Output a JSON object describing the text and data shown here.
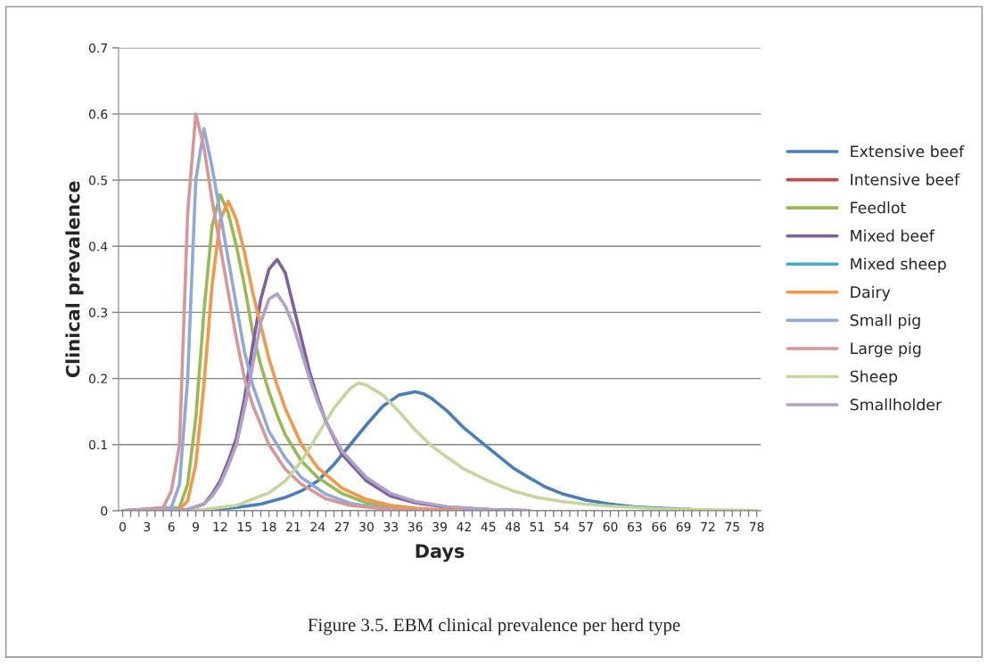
{
  "chart_data": {
    "type": "line",
    "title": "Figure 3.5. EBM clinical prevalence per herd type",
    "xlabel": "Days",
    "ylabel": "Clinical prevalence",
    "xlim": [
      -0.5,
      78.5
    ],
    "ylim": [
      0,
      0.7
    ],
    "yticks": [
      0,
      0.1,
      0.2,
      0.3,
      0.4,
      0.5,
      0.6,
      0.7
    ],
    "xticks": [
      0,
      {
        "value": 1,
        "label": null
      },
      {
        "value": 2,
        "label": null
      },
      3,
      {
        "value": 4,
        "label": null
      },
      {
        "value": 5,
        "label": null
      },
      6,
      {
        "value": 7,
        "label": null
      },
      {
        "value": 8,
        "label": null
      },
      9,
      {
        "value": 10,
        "label": null
      },
      {
        "value": 11,
        "label": null
      },
      12,
      {
        "value": 13,
        "label": null
      },
      {
        "value": 14,
        "label": null
      },
      15,
      {
        "value": 16,
        "label": null
      },
      {
        "value": 17,
        "label": null
      },
      18,
      {
        "value": 19,
        "label": null
      },
      {
        "value": 20,
        "label": null
      },
      21,
      {
        "value": 22,
        "label": null
      },
      {
        "value": 23,
        "label": null
      },
      24,
      {
        "value": 25,
        "label": null
      },
      {
        "value": 26,
        "label": null
      },
      27,
      {
        "value": 28,
        "label": null
      },
      {
        "value": 29,
        "label": null
      },
      30,
      {
        "value": 31,
        "label": null
      },
      {
        "value": 32,
        "label": null
      },
      33,
      {
        "value": 34,
        "label": null
      },
      {
        "value": 35,
        "label": null
      },
      36,
      {
        "value": 37,
        "label": null
      },
      {
        "value": 38,
        "label": null
      },
      39,
      {
        "value": 40,
        "label": null
      },
      {
        "value": 41,
        "label": null
      },
      42,
      {
        "value": 43,
        "label": null
      },
      {
        "value": 44,
        "label": null
      },
      45,
      {
        "value": 46,
        "label": null
      },
      {
        "value": 47,
        "label": null
      },
      48,
      {
        "value": 49,
        "label": null
      },
      {
        "value": 50,
        "label": null
      },
      51,
      {
        "value": 52,
        "label": null
      },
      {
        "value": 53,
        "label": null
      },
      54,
      {
        "value": 55,
        "label": null
      },
      {
        "value": 56,
        "label": null
      },
      57,
      {
        "value": 58,
        "label": null
      },
      {
        "value": 59,
        "label": null
      },
      60,
      {
        "value": 61,
        "label": null
      },
      {
        "value": 62,
        "label": null
      },
      63,
      {
        "value": 64,
        "label": null
      },
      {
        "value": 65,
        "label": null
      },
      66,
      {
        "value": 67,
        "label": null
      },
      {
        "value": 68,
        "label": null
      },
      69,
      {
        "value": 70,
        "label": null
      },
      {
        "value": 71,
        "label": null
      },
      72,
      {
        "value": 73,
        "label": null
      },
      {
        "value": 74,
        "label": null
      },
      75,
      {
        "value": 76,
        "label": null
      },
      {
        "value": 77,
        "label": null
      },
      78
    ],
    "grid": "y",
    "legend": "right",
    "marker": "none",
    "line_style": "solid",
    "series": [
      {
        "name": "Extensive beef",
        "color": "#4a7ebb",
        "x": [
          0,
          10,
          14,
          17,
          20,
          22,
          24,
          26,
          28,
          30,
          32,
          34,
          36,
          37,
          38,
          40,
          42,
          44,
          46,
          48,
          50,
          52,
          54,
          57,
          60,
          63,
          66,
          70
        ],
        "values": [
          0,
          0.001,
          0.005,
          0.01,
          0.02,
          0.03,
          0.045,
          0.07,
          0.1,
          0.13,
          0.158,
          0.175,
          0.18,
          0.177,
          0.17,
          0.15,
          0.125,
          0.105,
          0.085,
          0.065,
          0.05,
          0.036,
          0.026,
          0.016,
          0.01,
          0.006,
          0.004,
          0.002
        ]
      },
      {
        "name": "Intensive beef",
        "color": "#be4b48"
      },
      {
        "name": "Feedlot",
        "color": "#98b954",
        "x": [
          0,
          7,
          8,
          9,
          10,
          11,
          12,
          13,
          14,
          15,
          16,
          17,
          18,
          19,
          20,
          22,
          24,
          27,
          30,
          33,
          36,
          40
        ],
        "values": [
          0,
          0.005,
          0.04,
          0.14,
          0.3,
          0.43,
          0.478,
          0.45,
          0.4,
          0.34,
          0.27,
          0.22,
          0.18,
          0.145,
          0.115,
          0.075,
          0.05,
          0.026,
          0.012,
          0.005,
          0.002,
          0
        ]
      },
      {
        "name": "Mixed beef",
        "color": "#7d60a0",
        "x": [
          0,
          8,
          10,
          11,
          12,
          13,
          14,
          15,
          16,
          17,
          18,
          19,
          20,
          21,
          22,
          23,
          24,
          25,
          27,
          30,
          33,
          36,
          40,
          45,
          50
        ],
        "values": [
          0,
          0.002,
          0.01,
          0.025,
          0.045,
          0.075,
          0.11,
          0.17,
          0.25,
          0.32,
          0.365,
          0.38,
          0.36,
          0.31,
          0.26,
          0.21,
          0.17,
          0.135,
          0.085,
          0.045,
          0.022,
          0.012,
          0.005,
          0.002,
          0
        ]
      },
      {
        "name": "Mixed sheep",
        "color": "#46aac5"
      },
      {
        "name": "Dairy",
        "color": "#f79646",
        "x": [
          0,
          7,
          8,
          9,
          10,
          11,
          12,
          13,
          14,
          15,
          16,
          17,
          18,
          19,
          20,
          22,
          24,
          27,
          30,
          33,
          36,
          40,
          42
        ],
        "values": [
          0,
          0.002,
          0.015,
          0.07,
          0.19,
          0.34,
          0.44,
          0.468,
          0.44,
          0.39,
          0.33,
          0.28,
          0.23,
          0.19,
          0.155,
          0.1,
          0.065,
          0.034,
          0.017,
          0.008,
          0.004,
          0.001,
          0
        ]
      },
      {
        "name": "Small pig",
        "color": "#8eaadb",
        "x": [
          0,
          6,
          7,
          8,
          9,
          10,
          11,
          12,
          13,
          14,
          15,
          16,
          18,
          20,
          22,
          25,
          28,
          32,
          36,
          40
        ],
        "values": [
          0,
          0.005,
          0.04,
          0.2,
          0.5,
          0.578,
          0.52,
          0.45,
          0.38,
          0.31,
          0.24,
          0.19,
          0.12,
          0.08,
          0.05,
          0.025,
          0.011,
          0.004,
          0.001,
          0
        ]
      },
      {
        "name": "Large pig",
        "color": "#d99694",
        "x": [
          0,
          5,
          6,
          7,
          8,
          9,
          10,
          11,
          12,
          13,
          14,
          15,
          16,
          18,
          20,
          22,
          25,
          28,
          32,
          36,
          40
        ],
        "values": [
          0,
          0.005,
          0.03,
          0.1,
          0.45,
          0.6,
          0.55,
          0.47,
          0.4,
          0.33,
          0.26,
          0.2,
          0.16,
          0.1,
          0.063,
          0.04,
          0.018,
          0.008,
          0.003,
          0.001,
          0
        ]
      },
      {
        "name": "Sheep",
        "color": "#c3d69b",
        "x": [
          0,
          10,
          14,
          18,
          20,
          22,
          24,
          26,
          28,
          29,
          30,
          32,
          34,
          36,
          38,
          40,
          42,
          45,
          48,
          51,
          54,
          57,
          60,
          63,
          66,
          70,
          75,
          78
        ],
        "values": [
          0,
          0.002,
          0.008,
          0.027,
          0.045,
          0.075,
          0.115,
          0.155,
          0.185,
          0.193,
          0.19,
          0.175,
          0.15,
          0.122,
          0.098,
          0.08,
          0.063,
          0.045,
          0.03,
          0.02,
          0.014,
          0.01,
          0.007,
          0.005,
          0.003,
          0.002,
          0.001,
          0
        ]
      },
      {
        "name": "Smallholder",
        "color": "#b2a1c7",
        "x": [
          0,
          8,
          10,
          11,
          12,
          13,
          14,
          15,
          16,
          17,
          18,
          19,
          20,
          21,
          22,
          23,
          24,
          25,
          27,
          30,
          33,
          36,
          40,
          45,
          50
        ],
        "values": [
          0,
          0.002,
          0.01,
          0.022,
          0.04,
          0.068,
          0.1,
          0.155,
          0.22,
          0.285,
          0.32,
          0.328,
          0.31,
          0.28,
          0.24,
          0.2,
          0.165,
          0.135,
          0.09,
          0.05,
          0.026,
          0.014,
          0.006,
          0.002,
          0
        ]
      }
    ]
  }
}
